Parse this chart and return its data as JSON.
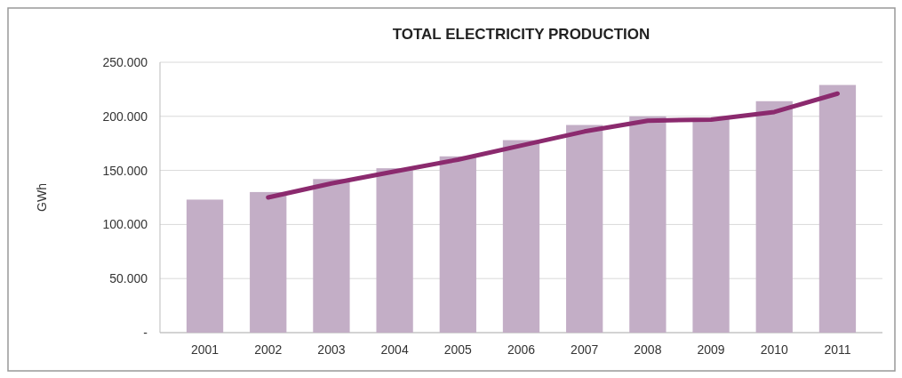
{
  "chart_data": {
    "type": "bar",
    "title": "TOTAL ELECTRICITY PRODUCTION",
    "ylabel": "GWh",
    "categories": [
      "2001",
      "2002",
      "2003",
      "2004",
      "2005",
      "2006",
      "2007",
      "2008",
      "2009",
      "2010",
      "2011"
    ],
    "series": [
      {
        "color": "#c3aec6",
        "values": [
          123000,
          130000,
          142000,
          152000,
          163000,
          178000,
          192000,
          200000,
          198000,
          214000,
          229000
        ]
      },
      {
        "type": "line",
        "color": "#8b2a6e",
        "values": [
          null,
          125000,
          138000,
          149000,
          160000,
          173000,
          186000,
          196000,
          197000,
          204000,
          221000
        ]
      }
    ],
    "ylim": [
      0,
      250000
    ],
    "yticks": [
      {
        "value": 0,
        "label": "-"
      },
      {
        "value": 50000,
        "label": "50.000"
      },
      {
        "value": 100000,
        "label": "100.000"
      },
      {
        "value": 150000,
        "label": "150.000"
      },
      {
        "value": 200000,
        "label": "200.000"
      },
      {
        "value": 250000,
        "label": "250.000"
      }
    ],
    "grid": "y",
    "marker": "none",
    "line_style": "solid"
  }
}
